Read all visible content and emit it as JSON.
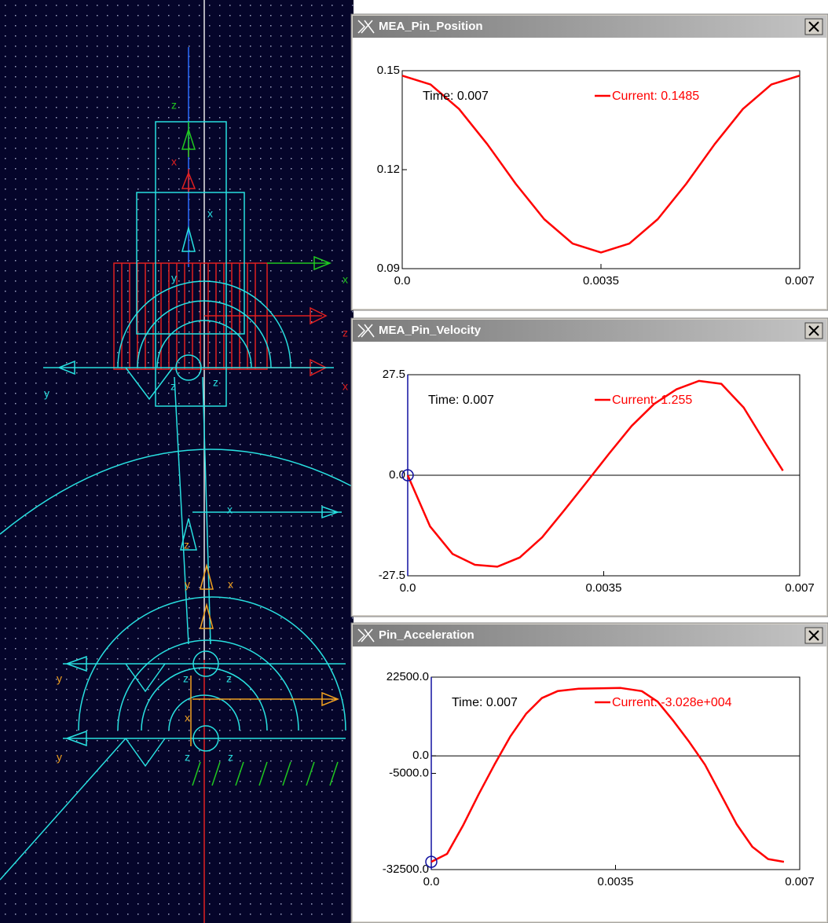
{
  "chart_data": [
    {
      "type": "line",
      "title": "MEA_Pin_Position",
      "annotation": "Time: 0.007",
      "x": [
        0,
        0.0005,
        0.001,
        0.0015,
        0.002,
        0.0025,
        0.003,
        0.0035,
        0.004,
        0.0045,
        0.005,
        0.0055,
        0.006,
        0.0065,
        0.007
      ],
      "xlim": [
        0,
        0.007
      ],
      "xticks": [
        {
          "value": 0,
          "label": "0.0"
        },
        0.0035,
        0.007
      ],
      "ylim": [
        0.09,
        0.15
      ],
      "yticks": [
        0.09,
        0.12,
        0.15
      ],
      "series": [
        {
          "name": "Current: 0.1485",
          "color": "#ff0000",
          "values": [
            0.1485,
            0.1458,
            0.1384,
            0.1277,
            0.1157,
            0.105,
            0.0976,
            0.0949,
            0.0976,
            0.105,
            0.1157,
            0.1277,
            0.1384,
            0.1458,
            0.1485
          ]
        }
      ]
    },
    {
      "type": "line",
      "title": "MEA_Pin_Velocity",
      "annotation": "Time: 0.007",
      "zero_line": true,
      "cursor": true,
      "x": [
        0,
        0.0004,
        0.0008,
        0.0012,
        0.0016,
        0.002,
        0.0024,
        0.0028,
        0.0032,
        0.0036,
        0.004,
        0.0044,
        0.0048,
        0.0052,
        0.0056,
        0.006,
        0.0064,
        0.0067
      ],
      "xlim": [
        0,
        0.007
      ],
      "xticks": [
        {
          "value": 0,
          "label": "0.0"
        },
        0.0035,
        0.007
      ],
      "ylim": [
        -27.5,
        27.5
      ],
      "yticks": [
        -27.5,
        {
          "value": 0,
          "label": "0.0"
        },
        27.5
      ],
      "series": [
        {
          "name": "Current: 1.255",
          "color": "#ff0000",
          "values": [
            0,
            -14,
            -21.5,
            -24.5,
            -25,
            -22.5,
            -17,
            -9.5,
            -1.8,
            6,
            13.5,
            19.5,
            23.5,
            25.8,
            25,
            18.5,
            8.5,
            1.255
          ]
        }
      ]
    },
    {
      "type": "line",
      "title": "Pin_Acceleration",
      "annotation": "Time: 0.007",
      "zero_line": true,
      "cursor": true,
      "x": [
        0,
        0.0003,
        0.0006,
        0.0009,
        0.0012,
        0.0015,
        0.0018,
        0.0021,
        0.0024,
        0.0028,
        0.0032,
        0.0036,
        0.004,
        0.0043,
        0.0046,
        0.0049,
        0.0052,
        0.0055,
        0.0058,
        0.0061,
        0.0064,
        0.0067
      ],
      "xlim": [
        0,
        0.007
      ],
      "xticks": [
        {
          "value": 0,
          "label": "0.0"
        },
        0.0035,
        0.007
      ],
      "ylim": [
        -32500,
        22500
      ],
      "yticks": [
        {
          "value": -32500,
          "label": "-32500.0"
        },
        {
          "value": -5000,
          "label": "-5000.0"
        },
        {
          "value": 0,
          "label": "0.0"
        },
        {
          "value": 22500,
          "label": "22500.0"
        }
      ],
      "series": [
        {
          "name": "Current: -3.028e+004",
          "color": "#ff0000",
          "values": [
            -30280,
            -28000,
            -20000,
            -11000,
            -2500,
            5500,
            12000,
            16500,
            18500,
            19200,
            19300,
            19400,
            18500,
            15500,
            10000,
            4000,
            -2500,
            -11000,
            -19500,
            -26000,
            -29500,
            -30280
          ]
        }
      ]
    }
  ],
  "viewport": {
    "labels": [
      "z",
      "x",
      "x",
      "y",
      "x",
      "z",
      "x",
      "y",
      "z",
      "z",
      "x",
      "z",
      "y",
      "x",
      "y",
      "z",
      "z",
      "x",
      "y",
      "z",
      "z"
    ]
  }
}
